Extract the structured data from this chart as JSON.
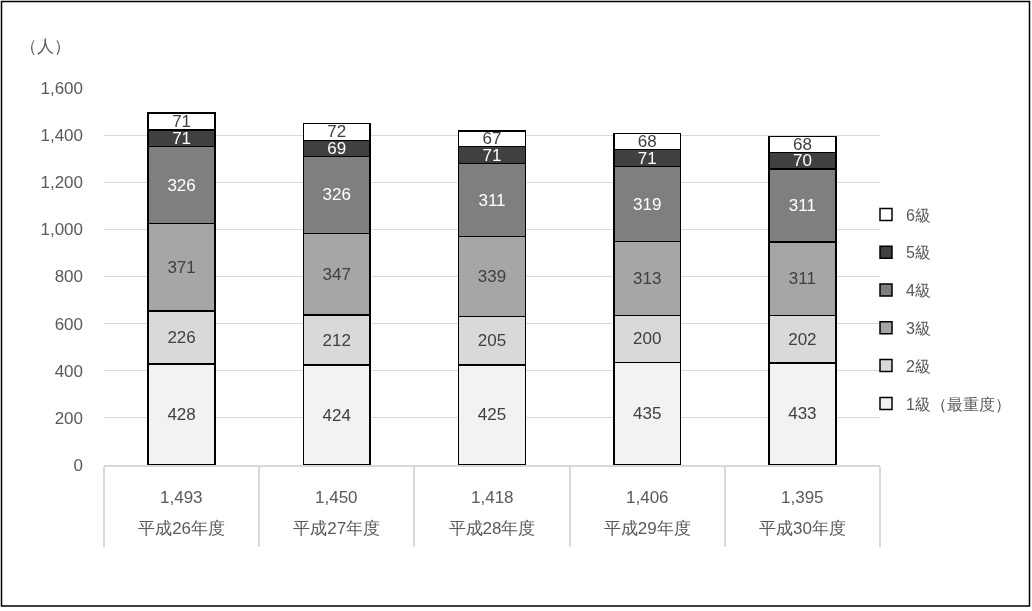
{
  "chart_data": {
    "type": "bar",
    "stacked": true,
    "ylabel": "（人）",
    "categories": [
      "平成26年度",
      "平成27年度",
      "平成28年度",
      "平成29年度",
      "平成30年度"
    ],
    "series": [
      {
        "name": "1級（最重度）",
        "color": "#f2f2f2",
        "values": [
          428,
          424,
          425,
          435,
          433
        ]
      },
      {
        "name": "2級",
        "color": "#d9d9d9",
        "values": [
          226,
          212,
          205,
          200,
          202
        ]
      },
      {
        "name": "3級",
        "color": "#a6a6a6",
        "values": [
          371,
          347,
          339,
          313,
          311
        ]
      },
      {
        "name": "4級",
        "color": "#7f7f7f",
        "values": [
          326,
          326,
          311,
          319,
          311
        ]
      },
      {
        "name": "5級",
        "color": "#404040",
        "values": [
          71,
          69,
          71,
          71,
          70
        ]
      },
      {
        "name": "6級",
        "color": "#ffffff",
        "values": [
          71,
          72,
          67,
          68,
          68
        ]
      }
    ],
    "ylim": [
      0,
      1600
    ],
    "yticks": [
      0,
      200,
      400,
      600,
      800,
      {
        "value": 1000,
        "label": "1,000"
      },
      {
        "value": 1200,
        "label": "1,200"
      },
      {
        "value": 1400,
        "label": "1,400"
      },
      {
        "value": 1600,
        "label": "1,600"
      }
    ],
    "grid": "y",
    "legend": "right",
    "data_labels": true,
    "totals": [
      "1,493",
      "1,450",
      "1,418",
      "1,406",
      "1,395"
    ]
  }
}
